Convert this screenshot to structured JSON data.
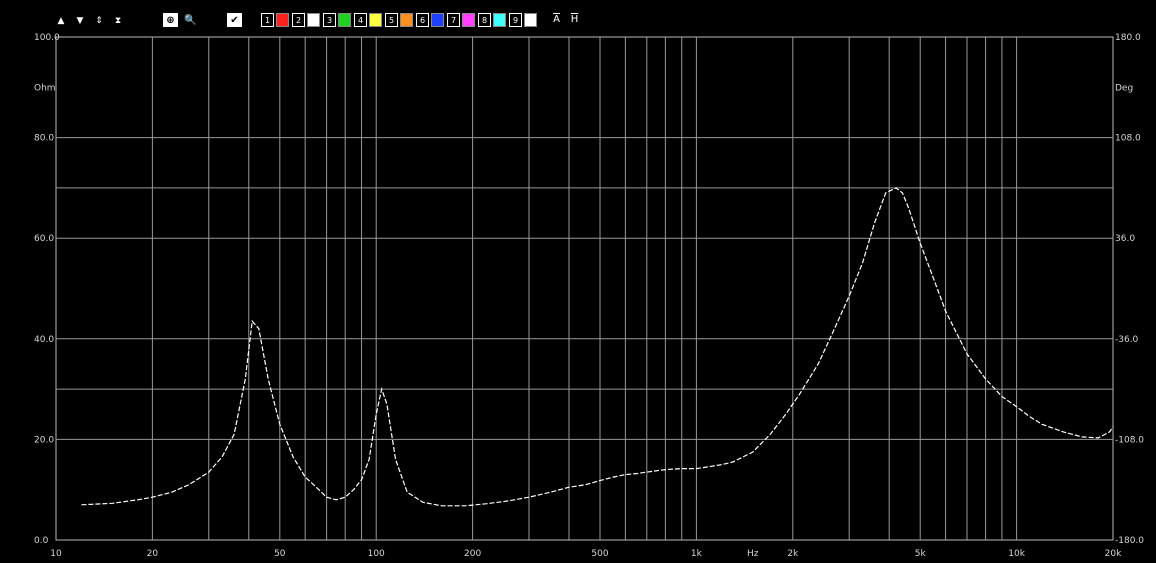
{
  "toolbar": {
    "arrows": [
      {
        "icon": "arrow-up-icon",
        "glyph": "▲"
      },
      {
        "icon": "arrow-down-icon",
        "glyph": "▼"
      },
      {
        "icon": "expand-vertical-icon",
        "glyph": "⇕"
      },
      {
        "icon": "compress-vertical-icon",
        "glyph": "⧗"
      }
    ],
    "controls": [
      {
        "icon": "zoom-in-icon",
        "glyph": "⊕"
      },
      {
        "icon": "magnifier-icon",
        "glyph": "🔍"
      },
      {
        "icon": "checkbox-icon",
        "glyph": "✔"
      }
    ],
    "curves": [
      {
        "num": "1",
        "color": "#ff2020"
      },
      {
        "num": "2",
        "color": "#ffffff"
      },
      {
        "num": "3",
        "color": "#20d020"
      },
      {
        "num": "4",
        "color": "#ffff40"
      },
      {
        "num": "5",
        "color": "#ff9020"
      },
      {
        "num": "6",
        "color": "#2040ff"
      },
      {
        "num": "7",
        "color": "#ff40ff"
      },
      {
        "num": "8",
        "color": "#40ffff"
      },
      {
        "num": "9",
        "color": "#ffffff"
      }
    ],
    "letters": [
      "A",
      "H"
    ]
  },
  "chart_data": {
    "type": "line",
    "x_scale": "log",
    "xlim": [
      10,
      20000
    ],
    "ylim": [
      0,
      100
    ],
    "x_ticks": [
      {
        "value": 10,
        "label": "10"
      },
      {
        "value": 20,
        "label": "20"
      },
      {
        "value": 50,
        "label": "50"
      },
      {
        "value": 100,
        "label": "100"
      },
      {
        "value": 200,
        "label": "200"
      },
      {
        "value": 500,
        "label": "500"
      },
      {
        "value": 1000,
        "label": "1k"
      },
      {
        "value": 1500,
        "label": "Hz"
      },
      {
        "value": 2000,
        "label": "2k"
      },
      {
        "value": 5000,
        "label": "5k"
      },
      {
        "value": 10000,
        "label": "10k"
      },
      {
        "value": 20000,
        "label": "20k"
      }
    ],
    "x_grid": [
      10,
      20,
      30,
      40,
      50,
      60,
      70,
      80,
      90,
      100,
      200,
      300,
      400,
      500,
      600,
      700,
      800,
      900,
      1000,
      2000,
      3000,
      4000,
      5000,
      6000,
      7000,
      8000,
      9000,
      10000,
      20000
    ],
    "y_ticks_left": [
      {
        "value": 100,
        "label": "100.0"
      },
      {
        "value": 90,
        "label": "Ohm"
      },
      {
        "value": 80,
        "label": "80.0"
      },
      {
        "value": 60,
        "label": "60.0"
      },
      {
        "value": 40,
        "label": "40.0"
      },
      {
        "value": 20,
        "label": "20.0"
      },
      {
        "value": 0,
        "label": "0.0"
      }
    ],
    "y_ticks_right": [
      {
        "value": 100,
        "label": "180.0"
      },
      {
        "value": 90,
        "label": "Deg"
      },
      {
        "value": 80,
        "label": "108.0"
      },
      {
        "value": 60,
        "label": "36.0"
      },
      {
        "value": 40,
        "label": "-36.0"
      },
      {
        "value": 20,
        "label": "-108.0"
      },
      {
        "value": 0,
        "label": "-180.0"
      }
    ],
    "y_grid": [
      80,
      70,
      60,
      40,
      30,
      20
    ],
    "series": [
      {
        "color": "#ffffff",
        "x": [
          12,
          15,
          18,
          20,
          23,
          26,
          30,
          33,
          36,
          39,
          41,
          43,
          46,
          50,
          55,
          60,
          65,
          70,
          75,
          80,
          85,
          90,
          95,
          100,
          104,
          108,
          115,
          125,
          140,
          160,
          190,
          220,
          260,
          300,
          350,
          400,
          450,
          500,
          550,
          600,
          650,
          700,
          800,
          900,
          1000,
          1100,
          1200,
          1300,
          1500,
          1700,
          1900,
          2100,
          2400,
          2700,
          3000,
          3300,
          3600,
          3900,
          4200,
          4400,
          4600,
          5000,
          5500,
          6000,
          7000,
          8000,
          9000,
          10000,
          11000,
          12000,
          14000,
          16000,
          18000,
          19500,
          20000
        ],
        "y": [
          7,
          7.3,
          8,
          8.5,
          9.5,
          11,
          13.5,
          16.5,
          21,
          32,
          43.5,
          42,
          32,
          23,
          16.5,
          12.5,
          10.5,
          8.5,
          8,
          8.5,
          10,
          12,
          16,
          25,
          30,
          27,
          16,
          9.5,
          7.5,
          6.8,
          6.8,
          7.2,
          7.8,
          8.5,
          9.5,
          10.5,
          11,
          11.8,
          12.5,
          13,
          13.2,
          13.5,
          14,
          14.2,
          14.2,
          14.6,
          15,
          15.5,
          17.5,
          21,
          25,
          29,
          35,
          42,
          48.5,
          55,
          63,
          69,
          70,
          69,
          66,
          59,
          52,
          45.5,
          37,
          32,
          28.5,
          26.5,
          24.5,
          23,
          21.5,
          20.5,
          20.3,
          21.5,
          22.5
        ]
      }
    ]
  }
}
